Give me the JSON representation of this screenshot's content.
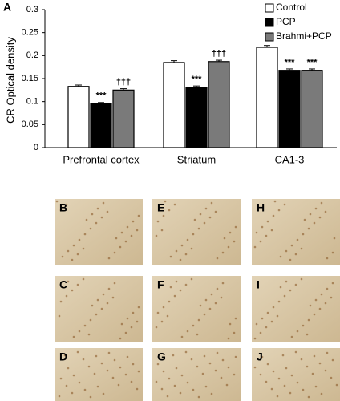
{
  "chart_data": {
    "type": "bar",
    "panel_label": "A",
    "y_label": "CR Optical density",
    "categories": [
      "Prefrontal cortex",
      "Striatum",
      "CA1-3"
    ],
    "series": [
      {
        "name": "Control",
        "color": "#ffffff",
        "values": [
          0.133,
          0.185,
          0.218
        ],
        "errors": [
          0.003,
          0.004,
          0.004
        ],
        "annotations": [
          null,
          null,
          null
        ]
      },
      {
        "name": "PCP",
        "color": "#000000",
        "values": [
          0.095,
          0.131,
          0.168
        ],
        "errors": [
          0.003,
          0.003,
          0.003
        ],
        "annotations": [
          "***",
          "***",
          "***"
        ]
      },
      {
        "name": "Brahmi+PCP",
        "color": "#7a7a7a",
        "values": [
          0.125,
          0.187,
          0.168
        ],
        "errors": [
          0.003,
          0.003,
          0.003
        ],
        "annotations": [
          "†††",
          "†††",
          "***"
        ]
      }
    ],
    "ylim": [
      0,
      0.3
    ],
    "yticks": [
      0,
      0.05,
      0.1,
      0.15,
      0.2,
      0.25,
      0.3
    ],
    "legend": "top-right"
  },
  "panels": [
    [
      "B",
      "C",
      "D"
    ],
    [
      "E",
      "F",
      "G"
    ],
    [
      "H",
      "I",
      "J"
    ]
  ]
}
